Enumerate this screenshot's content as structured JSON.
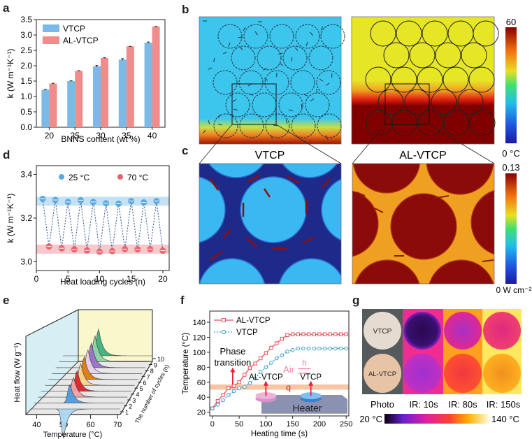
{
  "panel_letters": {
    "a": "a",
    "b": "b",
    "c": "c",
    "d": "d",
    "e": "e",
    "f": "f",
    "g": "g"
  },
  "chart_data": [
    {
      "id": "a",
      "type": "bar",
      "title": "",
      "xlabel": "BNNS content (wt %)",
      "ylabel": "k (W m⁻¹K⁻¹)",
      "categories": [
        "20",
        "25",
        "30",
        "35",
        "40"
      ],
      "series": [
        {
          "name": "VTCP",
          "color": "#7cb9e6",
          "values": [
            1.22,
            1.5,
            1.98,
            2.2,
            2.75
          ],
          "errors": [
            0.01,
            0.01,
            0.03,
            0.03,
            0.02
          ]
        },
        {
          "name": "AL-VTCP",
          "color": "#f08c8c",
          "values": [
            1.42,
            1.83,
            2.25,
            2.63,
            3.27
          ],
          "errors": [
            0.01,
            0.01,
            0.01,
            0.0,
            0.01
          ]
        }
      ],
      "ylim": [
        0,
        3.5
      ],
      "yticks": [
        "0.0",
        "0.5",
        "1.0",
        "1.5",
        "2.0",
        "2.5",
        "3.0",
        "3.5"
      ],
      "legend": "top-left"
    },
    {
      "id": "d",
      "type": "scatter",
      "xlabel": "Heat loading cycles (n)",
      "ylabel": "k (W m⁻¹K⁻¹)",
      "xlim": [
        0,
        21
      ],
      "ylim": [
        2.96,
        3.44
      ],
      "xticks": [
        "0",
        "5",
        "10",
        "15",
        "20"
      ],
      "yticks": [
        "3.0",
        "3.2",
        "3.4"
      ],
      "series": [
        {
          "name": "25 °C",
          "color": "#5aa8e0",
          "x": [
            1,
            3,
            5,
            7,
            9,
            11,
            13,
            15,
            17,
            19
          ],
          "values": [
            3.288,
            3.283,
            3.274,
            3.282,
            3.274,
            3.268,
            3.266,
            3.278,
            3.272,
            3.278
          ],
          "band": [
            3.257,
            3.298
          ]
        },
        {
          "name": "70 °C",
          "color": "#e8646e",
          "x": [
            2,
            4,
            6,
            8,
            10,
            12,
            14,
            16,
            18,
            20
          ],
          "values": [
            3.07,
            3.062,
            3.057,
            3.052,
            3.046,
            3.049,
            3.058,
            3.057,
            3.058,
            3.051
          ],
          "band": [
            3.037,
            3.079
          ]
        }
      ],
      "legend": "top"
    },
    {
      "id": "e",
      "type": "line",
      "xlabel": "Temperature (°C)",
      "ylabel": "Heat flow (W g⁻¹)",
      "zlabel": "The number of cycles (n)",
      "xticks": [
        "40",
        "50",
        "60",
        "70"
      ],
      "zticks": [
        "1",
        "2",
        "3",
        "4",
        "5",
        "6",
        "7",
        "8",
        "9",
        "10"
      ],
      "xlim": [
        36,
        71
      ],
      "series": [
        {
          "name": "1",
          "color": "#a9d8f2"
        },
        {
          "name": "2",
          "color": "#4d9de0"
        },
        {
          "name": "3",
          "color": "#f4a3a3"
        },
        {
          "name": "4",
          "color": "#d9262b"
        },
        {
          "name": "5",
          "color": "#f6d48c"
        },
        {
          "name": "6",
          "color": "#e27a10"
        },
        {
          "name": "7",
          "color": "#e6d2ea"
        },
        {
          "name": "8",
          "color": "#9a6fc9"
        },
        {
          "name": "9",
          "color": "#8fd3a8"
        },
        {
          "name": "10",
          "color": "#3fb27f"
        }
      ]
    },
    {
      "id": "f",
      "type": "line",
      "xlabel": "Heating time (s)",
      "ylabel": "Temperature (°C)",
      "xlim": [
        -5,
        255
      ],
      "ylim": [
        15,
        155
      ],
      "xticks": [
        "0",
        "50",
        "100",
        "150",
        "200",
        "250"
      ],
      "yticks": [
        "20",
        "40",
        "60",
        "80",
        "100",
        "120",
        "140"
      ],
      "x": [
        0,
        10,
        20,
        30,
        40,
        50,
        60,
        70,
        80,
        90,
        100,
        110,
        120,
        130,
        140,
        150,
        160,
        170,
        180,
        190,
        200,
        210,
        220,
        230,
        240,
        250
      ],
      "series": [
        {
          "name": "AL-VTCP",
          "color": "#e8505a",
          "marker": "square",
          "style": "solid",
          "values": [
            25,
            35,
            43,
            52,
            55,
            60,
            70,
            79,
            85,
            92,
            99,
            106,
            112,
            118,
            123,
            124,
            124,
            124,
            124,
            124,
            124,
            124,
            124,
            124,
            124,
            124
          ]
        },
        {
          "name": "VTCP",
          "color": "#3a9ad0",
          "marker": "circle",
          "style": "dotted",
          "values": [
            25,
            30,
            36,
            43,
            48,
            52,
            54,
            59,
            65,
            74,
            80,
            86,
            92,
            96,
            101,
            103,
            105,
            105,
            105,
            105,
            105,
            105,
            105,
            105,
            105,
            105
          ]
        }
      ],
      "band": [
        50,
        57
      ],
      "annotations": {
        "phase": [
          "Phase",
          "transition"
        ],
        "air": "Air",
        "h": "h",
        "q": "q",
        "al_label": "AL-VTCP",
        "vtcp_label": "VTCP",
        "heater": "Heater"
      },
      "legend": "top-left"
    }
  ],
  "panel_b": {
    "colorbar_max": "60",
    "colorbar_min": "0 °C"
  },
  "panel_c": {
    "left_title": "VTCP",
    "right_title": "AL-VTCP",
    "colorbar_max": "0.13",
    "colorbar_min": "0 W cm⁻²"
  },
  "panel_g": {
    "labels": [
      "Photo",
      "IR: 10s",
      "IR: 80s",
      "IR: 150s"
    ],
    "sample_top": "VTCP",
    "sample_bottom": "AL-VTCP",
    "scale_min": "20 °C",
    "scale_max": "140 °C"
  }
}
